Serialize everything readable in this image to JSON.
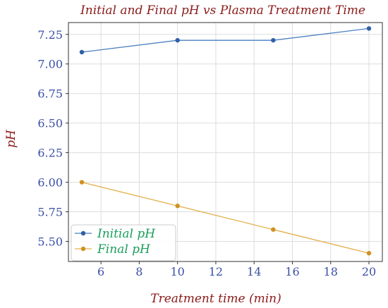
{
  "chart_data": {
    "type": "line",
    "title": "Initial and Final pH vs Plasma Treatment Time",
    "xlabel": "Treatment time (min)",
    "ylabel": "pH",
    "xlim": [
      4.3,
      20.7
    ],
    "ylim": [
      5.33,
      7.35
    ],
    "xticks": [
      6,
      8,
      10,
      12,
      14,
      16,
      18,
      20
    ],
    "yticks": [
      5.5,
      5.75,
      6.0,
      6.25,
      6.5,
      6.75,
      7.0,
      7.25
    ],
    "ytick_labels": [
      "5.50",
      "5.75",
      "6.00",
      "6.25",
      "6.50",
      "6.75",
      "7.00",
      "7.25"
    ],
    "grid": true,
    "legend_position": "lower-left",
    "x": [
      5,
      10,
      15,
      20
    ],
    "series": [
      {
        "name": "Initial pH",
        "values": [
          7.1,
          7.2,
          7.2,
          7.3
        ],
        "color": "#4a7fc1",
        "marker_color": "#2f5fa8"
      },
      {
        "name": "Final pH",
        "values": [
          6.0,
          5.8,
          5.6,
          5.4
        ],
        "color": "#e3b04b",
        "marker_color": "#cf9222"
      }
    ]
  }
}
